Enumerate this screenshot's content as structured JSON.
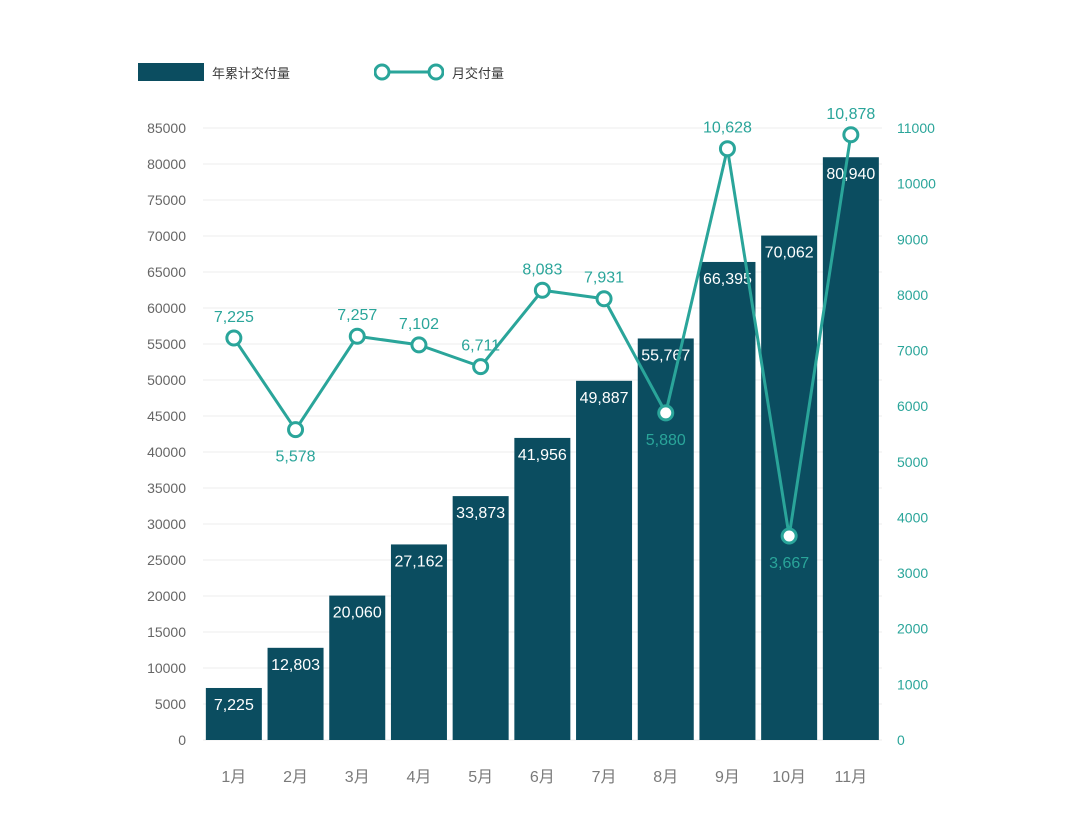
{
  "chart_data": {
    "type": "bar+line",
    "categories": [
      "1月",
      "2月",
      "3月",
      "4月",
      "5月",
      "6月",
      "7月",
      "8月",
      "9月",
      "10月",
      "11月"
    ],
    "series": [
      {
        "name": "年累计交付量",
        "type": "bar",
        "axis": "left",
        "values": [
          7225,
          12803,
          20060,
          27162,
          33873,
          41956,
          49887,
          55767,
          66395,
          70062,
          80940
        ],
        "labels": [
          "7,225",
          "12,803",
          "20,060",
          "27,162",
          "33,873",
          "41,956",
          "49,887",
          "55,767",
          "66,395",
          "70,062",
          "80,940"
        ]
      },
      {
        "name": "月交付量",
        "type": "line",
        "axis": "right",
        "values": [
          7225,
          5578,
          7257,
          7102,
          6711,
          8083,
          7931,
          5880,
          10628,
          3667,
          10878
        ],
        "labels": [
          "7,225",
          "5,578",
          "7,257",
          "7,102",
          "6,711",
          "8,083",
          "7,931",
          "5,880",
          "10,628",
          "3,667",
          "10,878"
        ]
      }
    ],
    "left_axis": {
      "ylim": [
        0,
        85000
      ],
      "ticks": [
        "0",
        "5000",
        "10000",
        "15000",
        "20000",
        "25000",
        "30000",
        "35000",
        "40000",
        "45000",
        "50000",
        "55000",
        "60000",
        "65000",
        "70000",
        "75000",
        "80000",
        "85000"
      ]
    },
    "right_axis": {
      "ylim": [
        0,
        11000
      ],
      "ticks": [
        "0",
        "1000",
        "2000",
        "3000",
        "4000",
        "5000",
        "6000",
        "7000",
        "8000",
        "9000",
        "10000",
        "11000"
      ]
    },
    "grid": true,
    "legend_position": "top-left",
    "colors": {
      "bar": "#0b4d60",
      "line": "#2aa59a",
      "tick": "#666666",
      "right_tick": "#2aa59a",
      "grid": "#ececec"
    }
  }
}
